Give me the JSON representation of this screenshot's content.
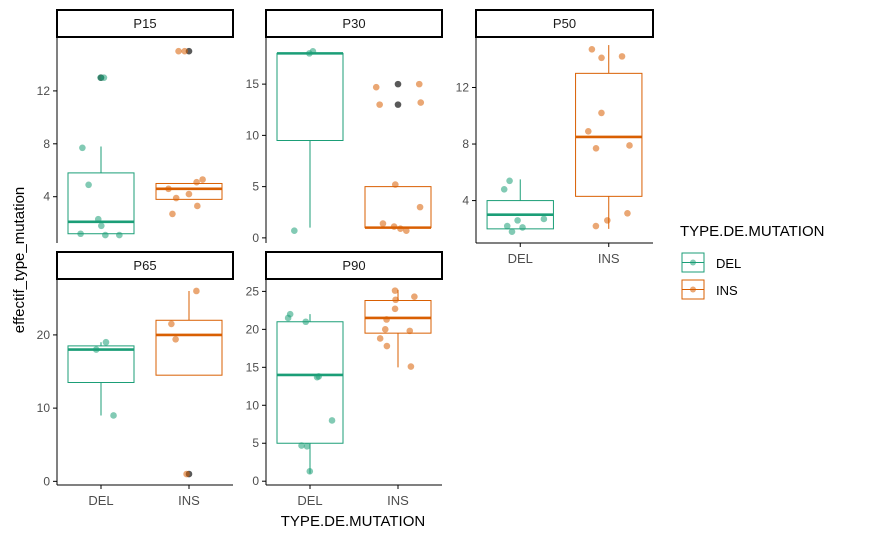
{
  "figure": {
    "ylabel": "effectif_type_mutation",
    "xlabel": "TYPE.DE.MUTATION"
  },
  "legend": {
    "title": "TYPE.DE.MUTATION",
    "placement": "right",
    "items": [
      {
        "label": "DEL",
        "color": "#1b9e77"
      },
      {
        "label": "INS",
        "color": "#d95f02"
      }
    ]
  },
  "colors": {
    "DEL": "#1b9e77",
    "INS": "#d95f02",
    "outlier": "#595959",
    "strip_border": "#000000",
    "axis": "#000000",
    "tick_text": "#4d4d4d"
  },
  "chart_data": [
    {
      "type": "box",
      "panel": "P15",
      "categories": [
        "DEL",
        "INS"
      ],
      "ylim": [
        0.5,
        16
      ],
      "yticks": [
        4,
        8,
        12
      ],
      "show_x_axis": false,
      "boxes": [
        {
          "name": "DEL",
          "q1": 1.2,
          "median": 2.1,
          "q3": 5.8,
          "whisker_low": 1.2,
          "whisker_high": 7.8,
          "outliers": [
            13
          ]
        },
        {
          "name": "INS",
          "q1": 3.8,
          "median": 4.6,
          "q3": 5.0,
          "whisker_low": 3.8,
          "whisker_high": 5.0,
          "outliers": [
            15
          ]
        }
      ],
      "points": [
        {
          "name": "DEL",
          "values": [
            13,
            13,
            7.7,
            4.9,
            2.3,
            1.8,
            1.2,
            1.1,
            1.1
          ]
        },
        {
          "name": "INS",
          "values": [
            15,
            15,
            5.3,
            5.1,
            4.6,
            4.2,
            3.9,
            3.3,
            2.7
          ]
        }
      ]
    },
    {
      "type": "box",
      "panel": "P30",
      "categories": [
        "DEL",
        "INS"
      ],
      "ylim": [
        -0.5,
        19.5
      ],
      "yticks": [
        0,
        5,
        10,
        15
      ],
      "show_x_axis": false,
      "boxes": [
        {
          "name": "DEL",
          "q1": 9.5,
          "median": 18,
          "q3": 18,
          "whisker_low": 1,
          "whisker_high": 18,
          "outliers": []
        },
        {
          "name": "INS",
          "q1": 1,
          "median": 1,
          "q3": 5,
          "whisker_low": 1,
          "whisker_high": 5,
          "outliers": [
            13,
            15
          ]
        }
      ],
      "points": [
        {
          "name": "DEL",
          "values": [
            18.2,
            18,
            0.7
          ]
        },
        {
          "name": "INS",
          "values": [
            14.7,
            15,
            13.2,
            13,
            5.2,
            3,
            1.4,
            1.1,
            0.9,
            0.7
          ]
        }
      ]
    },
    {
      "type": "box",
      "panel": "P50",
      "categories": [
        "DEL",
        "INS"
      ],
      "ylim": [
        1,
        15.5
      ],
      "yticks": [
        4,
        8,
        12
      ],
      "show_x_axis": true,
      "boxes": [
        {
          "name": "DEL",
          "q1": 2,
          "median": 3,
          "q3": 4,
          "whisker_low": 2,
          "whisker_high": 5.5,
          "outliers": []
        },
        {
          "name": "INS",
          "q1": 4.3,
          "median": 8.5,
          "q3": 13,
          "whisker_low": 2,
          "whisker_high": 15,
          "outliers": []
        }
      ],
      "points": [
        {
          "name": "DEL",
          "values": [
            5.4,
            4.8,
            2.7,
            2.6,
            2.2,
            2.1,
            1.8
          ]
        },
        {
          "name": "INS",
          "values": [
            14.7,
            14.2,
            14.1,
            10.2,
            8.9,
            7.9,
            7.7,
            3.1,
            2.6,
            2.2
          ]
        }
      ]
    },
    {
      "type": "box",
      "panel": "P65",
      "categories": [
        "DEL",
        "INS"
      ],
      "ylim": [
        -0.5,
        27.5
      ],
      "yticks": [
        0,
        10,
        20
      ],
      "show_x_axis": true,
      "boxes": [
        {
          "name": "DEL",
          "q1": 13.5,
          "median": 18,
          "q3": 18.5,
          "whisker_low": 9,
          "whisker_high": 19,
          "outliers": []
        },
        {
          "name": "INS",
          "q1": 14.5,
          "median": 20,
          "q3": 22,
          "whisker_low": 14.5,
          "whisker_high": 26,
          "outliers": [
            1
          ]
        }
      ],
      "points": [
        {
          "name": "DEL",
          "values": [
            19,
            18,
            9
          ]
        },
        {
          "name": "INS",
          "values": [
            26,
            21.5,
            19.4,
            1
          ]
        }
      ]
    },
    {
      "type": "box",
      "panel": "P90",
      "categories": [
        "DEL",
        "INS"
      ],
      "ylim": [
        -0.5,
        26.5
      ],
      "yticks": [
        0,
        5,
        10,
        15,
        20,
        25
      ],
      "show_x_axis": true,
      "boxes": [
        {
          "name": "DEL",
          "q1": 5,
          "median": 14,
          "q3": 21,
          "whisker_low": 1,
          "whisker_high": 22,
          "outliers": []
        },
        {
          "name": "INS",
          "q1": 19.5,
          "median": 21.5,
          "q3": 23.8,
          "whisker_low": 15,
          "whisker_high": 25.2,
          "outliers": []
        }
      ],
      "points": [
        {
          "name": "DEL",
          "values": [
            22,
            21.5,
            21,
            13.8,
            13.7,
            8,
            4.7,
            4.6,
            1.3
          ]
        },
        {
          "name": "INS",
          "values": [
            25.1,
            24.3,
            23.9,
            22.7,
            21.3,
            20,
            19.8,
            18.8,
            17.8,
            15.1
          ]
        }
      ]
    }
  ]
}
